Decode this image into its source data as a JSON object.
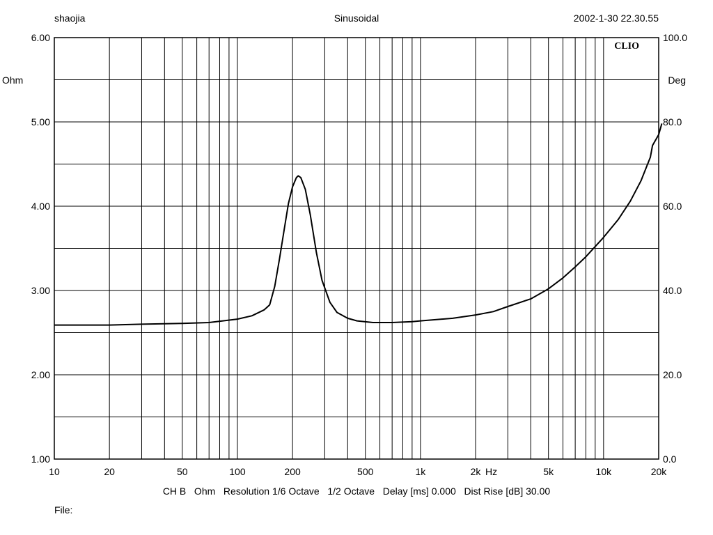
{
  "header": {
    "left": "shaojia",
    "center": "Sinusoidal",
    "right": "2002-1-30 22.30.55"
  },
  "brand": "CLIO",
  "footer": {
    "info": "CH B   Ohm   Resolution 1/6 Octave   1/2 Octave   Delay [ms] 0.000   Dist Rise [dB] 30.00",
    "file_label": "File:"
  },
  "chart_data": {
    "type": "line",
    "title": "Sinusoidal",
    "x_scale": "log",
    "xlim": [
      10,
      20000
    ],
    "x_unit": "Hz",
    "x_ticks": [
      {
        "value": 10,
        "label": "10"
      },
      {
        "value": 20,
        "label": "20"
      },
      {
        "value": 50,
        "label": "50"
      },
      {
        "value": 100,
        "label": "100"
      },
      {
        "value": 200,
        "label": "200"
      },
      {
        "value": 500,
        "label": "500"
      },
      {
        "value": 1000,
        "label": "1k"
      },
      {
        "value": 2000,
        "label": "2k"
      },
      {
        "value": 5000,
        "label": "5k"
      },
      {
        "value": 10000,
        "label": "10k"
      },
      {
        "value": 20000,
        "label": "20k"
      }
    ],
    "ylim_left": [
      1,
      6
    ],
    "y_left_unit": "Ohm",
    "y_left_ticks": [
      {
        "value": 1,
        "label": "1.00"
      },
      {
        "value": 2,
        "label": "2.00"
      },
      {
        "value": 3,
        "label": "3.00"
      },
      {
        "value": 4,
        "label": "4.00"
      },
      {
        "value": 5,
        "label": "5.00"
      },
      {
        "value": 6,
        "label": "6.00"
      }
    ],
    "ylim_right": [
      0,
      100
    ],
    "y_right_unit": "Deg",
    "y_right_ticks": [
      {
        "value": 0,
        "label": "0.0"
      },
      {
        "value": 20,
        "label": "20.0"
      },
      {
        "value": 40,
        "label": "40.0"
      },
      {
        "value": 60,
        "label": "60.0"
      },
      {
        "value": 80,
        "label": "80.0"
      },
      {
        "value": 100,
        "label": "100.0"
      }
    ],
    "grid": true,
    "series": [
      {
        "color": "#000000",
        "axis": "left",
        "points": [
          [
            10,
            2.59
          ],
          [
            20,
            2.59
          ],
          [
            30,
            2.6
          ],
          [
            50,
            2.61
          ],
          [
            70,
            2.62
          ],
          [
            100,
            2.66
          ],
          [
            120,
            2.7
          ],
          [
            140,
            2.77
          ],
          [
            150,
            2.83
          ],
          [
            160,
            3.05
          ],
          [
            170,
            3.38
          ],
          [
            180,
            3.72
          ],
          [
            190,
            4.03
          ],
          [
            200,
            4.23
          ],
          [
            210,
            4.34
          ],
          [
            215,
            4.36
          ],
          [
            222,
            4.34
          ],
          [
            235,
            4.2
          ],
          [
            250,
            3.9
          ],
          [
            270,
            3.45
          ],
          [
            290,
            3.12
          ],
          [
            320,
            2.86
          ],
          [
            350,
            2.74
          ],
          [
            400,
            2.67
          ],
          [
            450,
            2.64
          ],
          [
            550,
            2.62
          ],
          [
            700,
            2.62
          ],
          [
            900,
            2.63
          ],
          [
            1000,
            2.64
          ],
          [
            1500,
            2.67
          ],
          [
            2000,
            2.71
          ],
          [
            2500,
            2.75
          ],
          [
            3000,
            2.81
          ],
          [
            4000,
            2.9
          ],
          [
            5000,
            3.02
          ],
          [
            6000,
            3.15
          ],
          [
            7000,
            3.28
          ],
          [
            8000,
            3.4
          ],
          [
            10000,
            3.63
          ],
          [
            12000,
            3.84
          ],
          [
            14000,
            4.06
          ],
          [
            16000,
            4.3
          ],
          [
            18000,
            4.58
          ],
          [
            18500,
            4.72
          ],
          [
            20000,
            4.85
          ],
          [
            20800,
            4.98
          ]
        ]
      }
    ]
  }
}
